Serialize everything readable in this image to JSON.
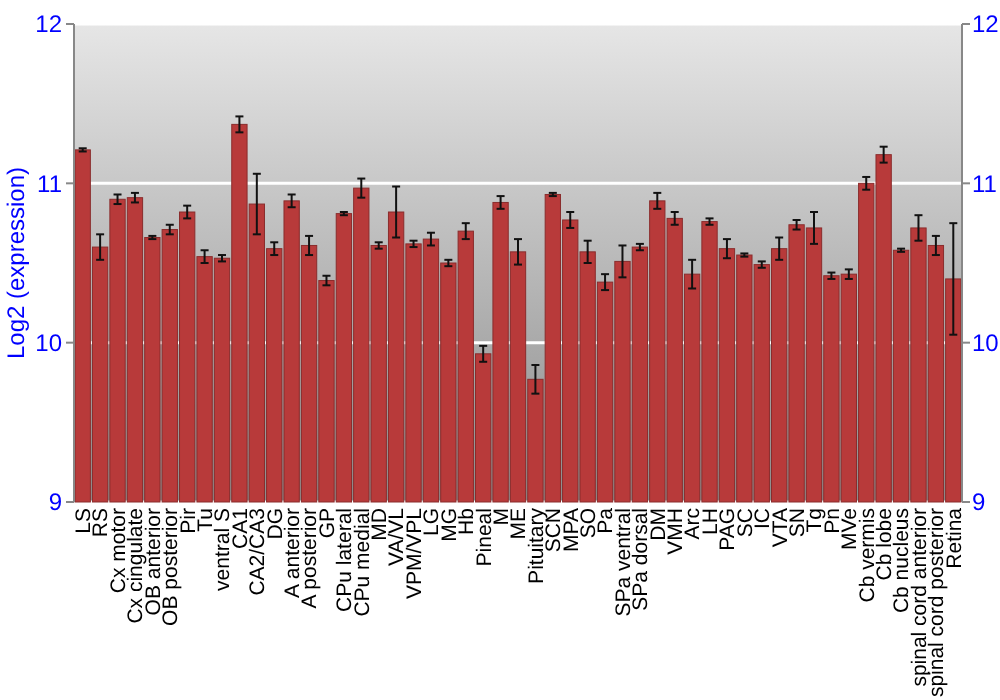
{
  "chart_data": {
    "type": "bar",
    "ylabel": "Log2 (expression)",
    "categories": [
      "LS",
      "RS",
      "Cx motor",
      "Cx cingulate",
      "OB anterior",
      "OB posterior",
      "Pir",
      "Tu",
      "ventral S",
      "CA1",
      "CA2/CA3",
      "DG",
      "A anterior",
      "A posterior",
      "GP",
      "CPu lateral",
      "CPu medial",
      "MD",
      "VA/VL",
      "VPM/VPL",
      "LG",
      "MG",
      "Hb",
      "Pineal",
      "M",
      "ME",
      "Pituitary",
      "SCN",
      "MPA",
      "SO",
      "Pa",
      "SPa ventral",
      "SPa dorsal",
      "DM",
      "VMH",
      "Arc",
      "LH",
      "PAG",
      "SC",
      "IC",
      "VTA",
      "SN",
      "Tg",
      "Pn",
      "MVe",
      "Cb vermis",
      "Cb lobe",
      "Cb nucleus",
      "spinal cord anterior",
      "spinal cord posterior",
      "Retina"
    ],
    "values": [
      11.21,
      10.6,
      10.9,
      10.91,
      10.66,
      10.71,
      10.82,
      10.54,
      10.53,
      11.37,
      10.87,
      10.59,
      10.89,
      10.61,
      10.39,
      10.81,
      10.97,
      10.61,
      10.82,
      10.62,
      10.65,
      10.5,
      10.7,
      9.93,
      10.88,
      10.57,
      9.77,
      10.93,
      10.77,
      10.57,
      10.38,
      10.51,
      10.6,
      10.89,
      10.78,
      10.43,
      10.76,
      10.59,
      10.55,
      10.49,
      10.59,
      10.74,
      10.72,
      10.42,
      10.43,
      11.0,
      11.18,
      10.58,
      10.72,
      10.61,
      10.4
    ],
    "errors": [
      0.01,
      0.08,
      0.03,
      0.03,
      0.01,
      0.03,
      0.04,
      0.04,
      0.02,
      0.05,
      0.19,
      0.04,
      0.04,
      0.06,
      0.03,
      0.01,
      0.06,
      0.02,
      0.16,
      0.02,
      0.04,
      0.02,
      0.05,
      0.05,
      0.04,
      0.08,
      0.09,
      0.01,
      0.05,
      0.07,
      0.05,
      0.1,
      0.02,
      0.05,
      0.04,
      0.09,
      0.02,
      0.06,
      0.01,
      0.02,
      0.07,
      0.03,
      0.1,
      0.02,
      0.03,
      0.04,
      0.05,
      0.01,
      0.08,
      0.06,
      0.35
    ],
    "color": "#b83a3a",
    "ylim": [
      9,
      12
    ],
    "yticks": [
      9,
      10,
      11,
      12
    ],
    "y2lim": [
      9,
      12
    ],
    "y2ticks": [
      9,
      10,
      11,
      12
    ],
    "grid": "y"
  }
}
